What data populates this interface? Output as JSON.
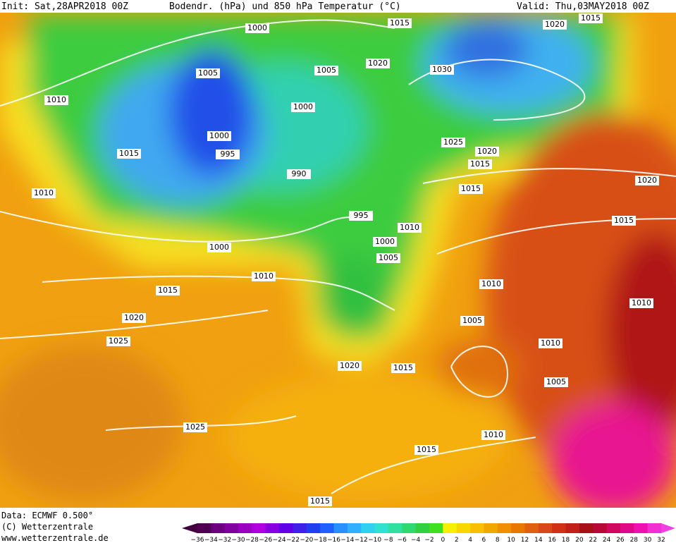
{
  "header": {
    "init": "Init: Sat,28APR2018 00Z",
    "title": "Bodendr. (hPa) und 850 hPa Temperatur (°C)",
    "valid": "Valid: Thu,03MAY2018 00Z"
  },
  "footer": {
    "data": "Data: ECMWF  0.500°",
    "copyright": "(C) Wetterzentrale",
    "website": "www.wetterzentrale.de"
  },
  "colorbar": {
    "labels": [
      "−36",
      "−34",
      "−32",
      "−30",
      "−28",
      "−26",
      "−24",
      "−22",
      "−20",
      "−18",
      "−16",
      "−14",
      "−12",
      "−10",
      "−8",
      "−6",
      "−4",
      "−2",
      "0",
      "2",
      "4",
      "6",
      "8",
      "10",
      "12",
      "14",
      "16",
      "18",
      "20",
      "22",
      "24",
      "26",
      "28",
      "30",
      "32"
    ]
  },
  "isobar_labels": [
    "1000",
    "1015",
    "1020",
    "1015",
    "1005",
    "1005",
    "1020",
    "1030",
    "1010",
    "1000",
    "1000",
    "995",
    "1015",
    "1025",
    "1020",
    "1015",
    "990",
    "1010",
    "1015",
    "1020",
    "995",
    "1010",
    "1000",
    "1005",
    "1000",
    "1015",
    "1010",
    "1015",
    "1010",
    "1010",
    "1020",
    "1005",
    "1025",
    "1010",
    "1020",
    "1015",
    "1005",
    "1025",
    "1010",
    "1015",
    "1015"
  ]
}
